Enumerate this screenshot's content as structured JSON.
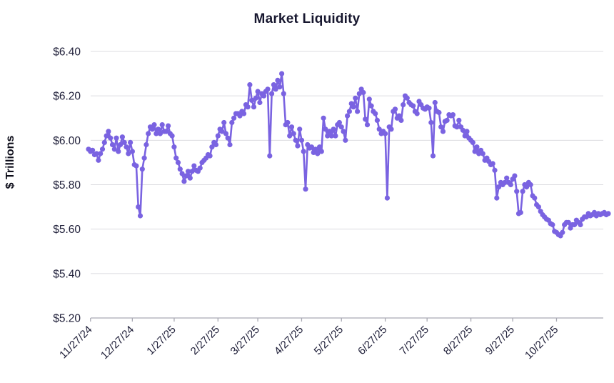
{
  "chart_data": {
    "type": "line",
    "title": "Market Liquidity",
    "ylabel": "$ Trillions",
    "xlabel": "",
    "legend": "none",
    "grid": "horizontal",
    "marker": "circle",
    "series_color": "#7a63e1",
    "grid_color": "#dcdce0",
    "axis_color": "#a9a9b3",
    "text_color": "#20203a",
    "background": "#ffffff",
    "ylim": [
      5.2,
      6.4
    ],
    "y_ticks": [
      {
        "value": 5.2,
        "label": "$5.20"
      },
      {
        "value": 5.4,
        "label": "$5.40"
      },
      {
        "value": 5.6,
        "label": "$5.60"
      },
      {
        "value": 5.8,
        "label": "$5.80"
      },
      {
        "value": 6.0,
        "label": "$6.00"
      },
      {
        "value": 6.2,
        "label": "$6.20"
      },
      {
        "value": 6.4,
        "label": "$6.40"
      }
    ],
    "x_ticks": [
      {
        "index": 1,
        "label": "11/27/24"
      },
      {
        "index": 22,
        "label": "12/27/24"
      },
      {
        "index": 43,
        "label": "1/27/25"
      },
      {
        "index": 65,
        "label": "2/27/25"
      },
      {
        "index": 85,
        "label": "3/27/25"
      },
      {
        "index": 107,
        "label": "4/27/25"
      },
      {
        "index": 127,
        "label": "5/27/25"
      },
      {
        "index": 149,
        "label": "6/27/25"
      },
      {
        "index": 170,
        "label": "7/27/25"
      },
      {
        "index": 192,
        "label": "8/27/25"
      },
      {
        "index": 213,
        "label": "9/27/25"
      },
      {
        "index": 235,
        "label": "10/27/25"
      }
    ],
    "values": [
      5.96,
      5.95,
      5.955,
      5.935,
      5.94,
      5.91,
      5.94,
      5.96,
      5.99,
      6.02,
      6.04,
      6.01,
      5.98,
      5.96,
      6.01,
      5.95,
      5.98,
      6.015,
      5.99,
      5.97,
      5.94,
      5.99,
      5.95,
      5.89,
      5.885,
      5.7,
      5.66,
      5.87,
      5.92,
      5.98,
      6.03,
      6.06,
      6.05,
      6.07,
      6.03,
      6.05,
      6.03,
      6.07,
      6.04,
      6.04,
      6.065,
      6.03,
      6.02,
      5.97,
      5.92,
      5.9,
      5.87,
      5.85,
      5.815,
      5.84,
      5.86,
      5.83,
      5.86,
      5.885,
      5.865,
      5.86,
      5.875,
      5.9,
      5.91,
      5.92,
      5.935,
      5.93,
      5.97,
      5.99,
      5.98,
      6.02,
      6.05,
      6.04,
      6.08,
      6.03,
      6.01,
      5.98,
      6.08,
      6.1,
      6.12,
      6.12,
      6.11,
      6.13,
      6.12,
      6.16,
      6.15,
      6.25,
      6.18,
      6.15,
      6.19,
      6.22,
      6.17,
      6.21,
      6.2,
      6.22,
      6.23,
      5.93,
      6.21,
      6.25,
      6.23,
      6.27,
      6.24,
      6.3,
      6.21,
      6.07,
      6.08,
      6.02,
      6.06,
      6.03,
      6.0,
      5.975,
      6.05,
      6.0,
      5.95,
      5.78,
      5.98,
      5.965,
      5.97,
      5.945,
      5.96,
      5.94,
      5.97,
      5.95,
      6.1,
      6.05,
      6.02,
      6.04,
      6.02,
      6.05,
      6.02,
      6.07,
      6.08,
      6.06,
      6.04,
      6.0,
      6.11,
      6.13,
      6.165,
      6.15,
      6.19,
      6.13,
      6.21,
      6.23,
      6.215,
      6.095,
      6.07,
      6.185,
      6.155,
      6.13,
      6.12,
      6.09,
      6.05,
      6.03,
      6.04,
      6.03,
      5.74,
      6.06,
      6.05,
      6.13,
      6.14,
      6.1,
      6.11,
      6.09,
      6.16,
      6.2,
      6.19,
      6.17,
      6.16,
      6.155,
      6.13,
      6.12,
      6.175,
      6.16,
      6.145,
      6.14,
      6.15,
      6.145,
      6.08,
      5.93,
      6.17,
      6.13,
      6.125,
      6.06,
      6.04,
      6.085,
      6.09,
      6.115,
      6.11,
      6.115,
      6.065,
      6.06,
      6.09,
      6.06,
      6.045,
      6.02,
      6.04,
      6.01,
      6.0,
      5.99,
      5.95,
      5.97,
      5.94,
      5.955,
      5.94,
      5.91,
      5.92,
      5.905,
      5.89,
      5.895,
      5.865,
      5.74,
      5.79,
      5.81,
      5.8,
      5.81,
      5.83,
      5.81,
      5.8,
      5.825,
      5.84,
      5.77,
      5.67,
      5.675,
      5.77,
      5.8,
      5.79,
      5.81,
      5.8,
      5.75,
      5.74,
      5.71,
      5.7,
      5.68,
      5.665,
      5.655,
      5.645,
      5.64,
      5.625,
      5.62,
      5.59,
      5.585,
      5.575,
      5.57,
      5.585,
      5.62,
      5.63,
      5.63,
      5.605,
      5.62,
      5.62,
      5.64,
      5.63,
      5.62,
      5.645,
      5.655,
      5.655,
      5.67,
      5.66,
      5.665,
      5.675,
      5.66,
      5.67,
      5.665,
      5.67,
      5.675,
      5.665,
      5.67
    ]
  }
}
